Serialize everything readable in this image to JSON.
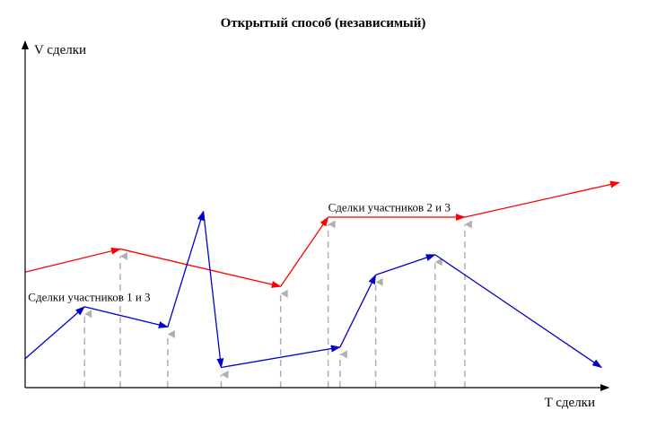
{
  "chart_data": {
    "type": "line",
    "title": "Открытый способ (независимый)",
    "xlabel": "T сделки",
    "ylabel": "V сделки",
    "xlim": [
      0,
      100
    ],
    "ylim": [
      0,
      100
    ],
    "grid": false,
    "legend": "none",
    "series": [
      {
        "color": "#ff0000",
        "x": [
          0,
          16,
          43,
          51,
          74,
          100
        ],
        "y": [
          40,
          48,
          35,
          59,
          59,
          71
        ]
      },
      {
        "color": "#0000cc",
        "x": [
          0,
          10,
          24,
          30,
          33,
          53,
          59,
          69,
          97
        ],
        "y": [
          10,
          28,
          21,
          61,
          7,
          14,
          39,
          46,
          7
        ]
      }
    ],
    "drop_lines": {
      "color": "#b0b0b0",
      "x": [
        10,
        16,
        24,
        33,
        43,
        51,
        53,
        59,
        69,
        74
      ]
    },
    "annotations": [
      {
        "text": "Сделки участников 1 и 3",
        "x": 0.5,
        "y": 30
      },
      {
        "text": "Сделки участников 2 и 3",
        "x": 51,
        "y": 61
      }
    ]
  }
}
